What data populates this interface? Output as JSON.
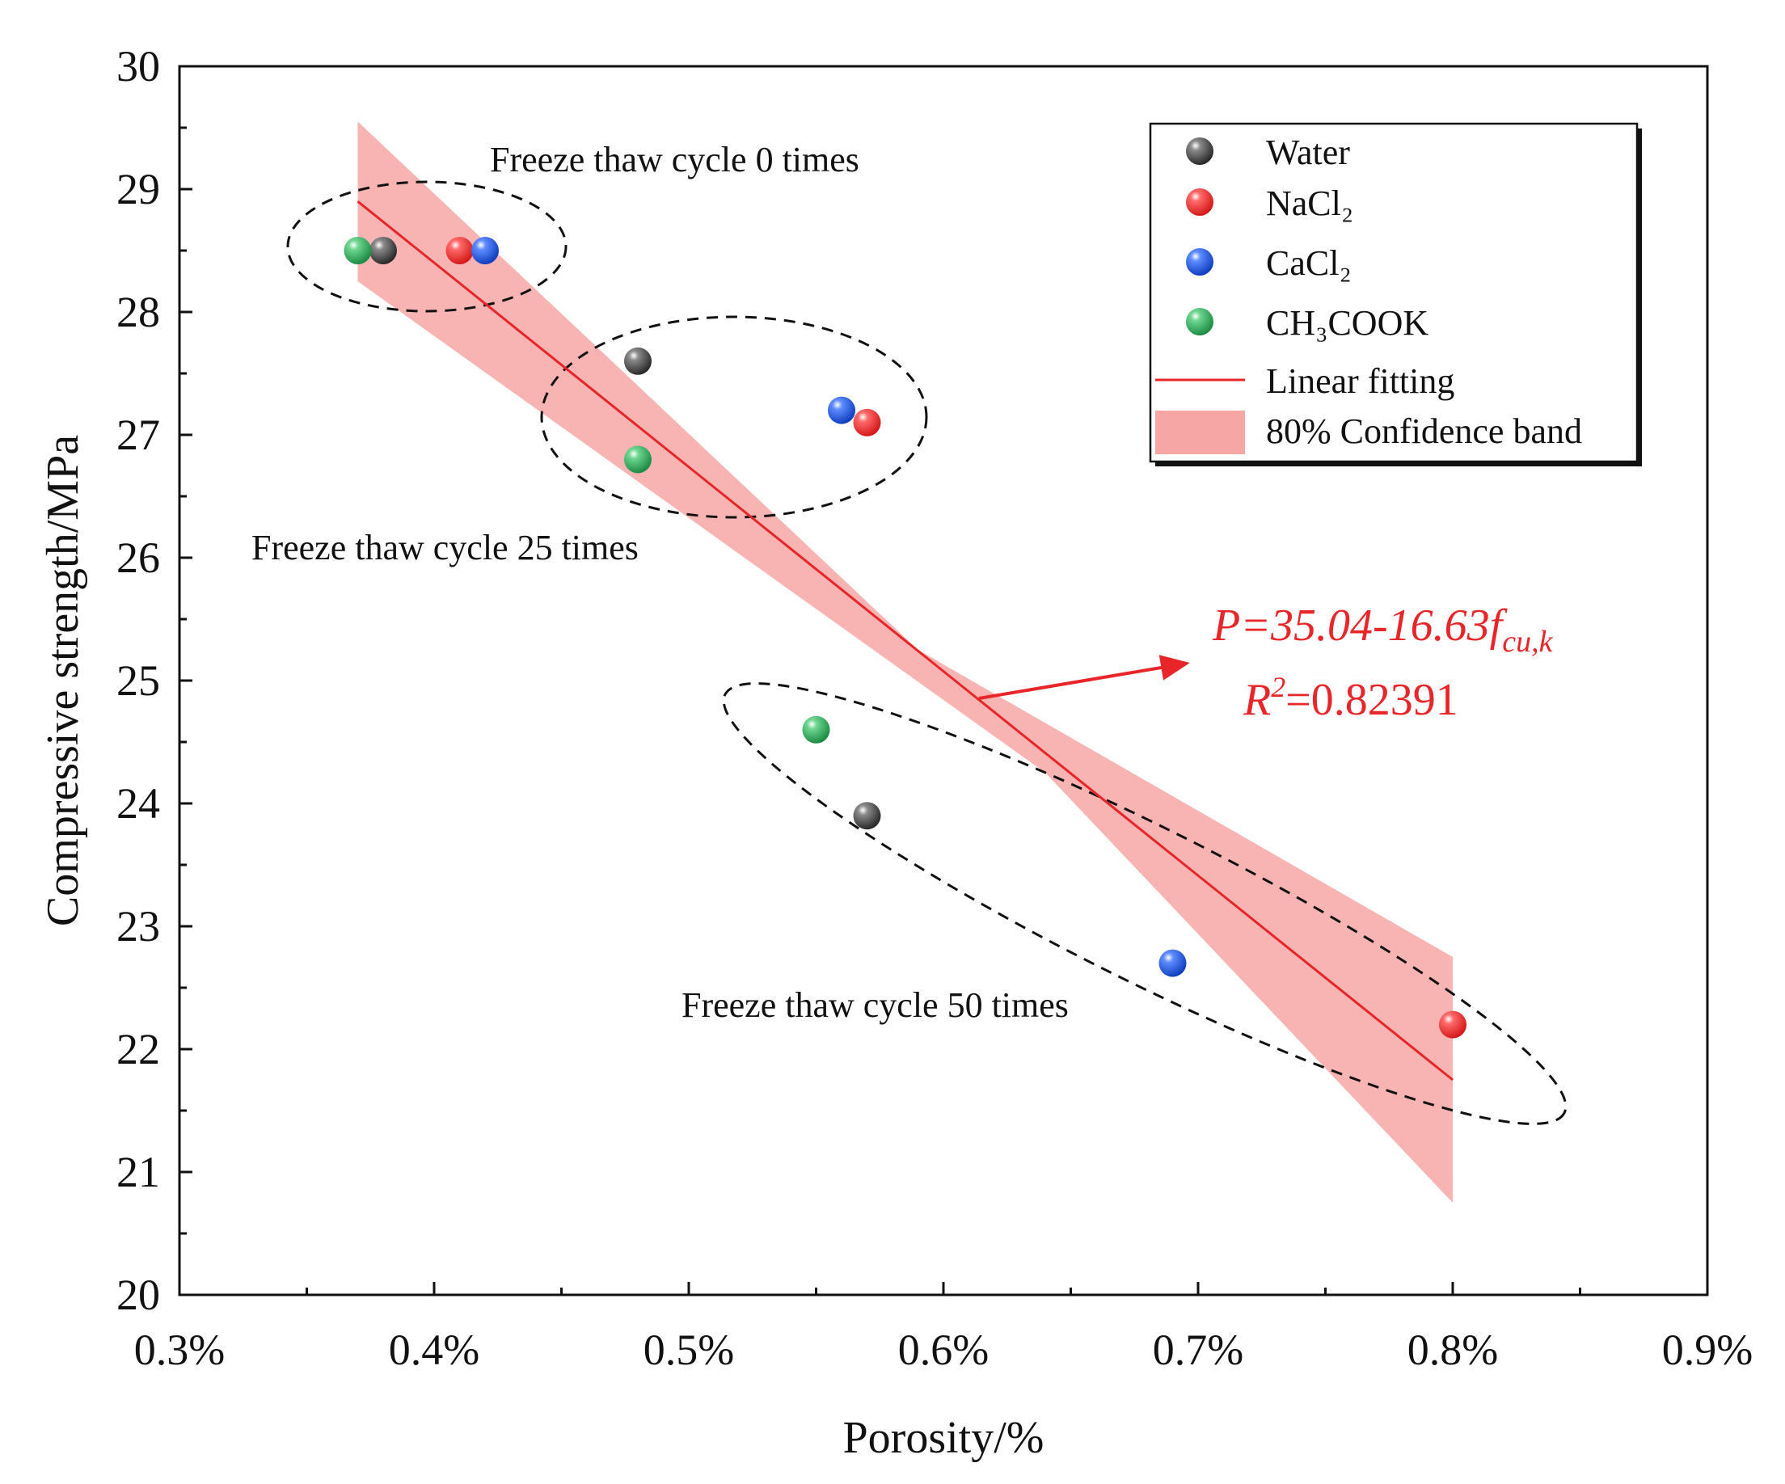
{
  "chart_data": {
    "type": "scatter",
    "xlabel": "Porosity/%",
    "ylabel": "Compressive strength/MPa",
    "xlim": [
      0.3,
      0.9
    ],
    "ylim": [
      20,
      30
    ],
    "x_ticks": [
      0.3,
      0.4,
      0.5,
      0.6,
      0.7,
      0.8,
      0.9
    ],
    "x_tick_labels": [
      "0.3%",
      "0.4%",
      "0.5%",
      "0.6%",
      "0.7%",
      "0.8%",
      "0.9%"
    ],
    "x_minor_ticks": [
      0.35,
      0.45,
      0.55,
      0.65,
      0.75,
      0.85
    ],
    "y_ticks": [
      20,
      21,
      22,
      23,
      24,
      25,
      26,
      27,
      28,
      29,
      30
    ],
    "y_tick_labels": [
      "20",
      "21",
      "22",
      "23",
      "24",
      "25",
      "26",
      "27",
      "28",
      "29",
      "30"
    ],
    "y_minor_ticks": [
      20.5,
      21.5,
      22.5,
      23.5,
      24.5,
      25.5,
      26.5,
      27.5,
      28.5,
      29.5
    ],
    "series": [
      {
        "name": "Water",
        "color": "#3a3a3a",
        "points": [
          {
            "x": 0.38,
            "y": 28.5
          },
          {
            "x": 0.48,
            "y": 27.6
          },
          {
            "x": 0.57,
            "y": 23.9
          }
        ]
      },
      {
        "name": "NaCl₂",
        "color": "#e8262a",
        "points": [
          {
            "x": 0.41,
            "y": 28.5
          },
          {
            "x": 0.57,
            "y": 27.1
          },
          {
            "x": 0.8,
            "y": 22.2
          }
        ]
      },
      {
        "name": "CaCl₂",
        "color": "#1f57d6",
        "points": [
          {
            "x": 0.42,
            "y": 28.5
          },
          {
            "x": 0.56,
            "y": 27.2
          },
          {
            "x": 0.69,
            "y": 22.7
          }
        ]
      },
      {
        "name": "CH₃COOK",
        "color": "#2aa65a",
        "points": [
          {
            "x": 0.37,
            "y": 28.5
          },
          {
            "x": 0.48,
            "y": 26.8
          },
          {
            "x": 0.55,
            "y": 24.6
          }
        ]
      }
    ],
    "fit": {
      "name": "Linear fitting",
      "color": "#e8262a",
      "x_range": [
        0.37,
        0.8
      ],
      "y_range": [
        28.9,
        21.75
      ]
    },
    "confidence_band": {
      "name": "80% Confidence band",
      "color": "#f6a9a9",
      "upper": [
        {
          "x": 0.37,
          "y": 29.55
        },
        {
          "x": 0.59,
          "y": 25.25
        },
        {
          "x": 0.8,
          "y": 22.75
        }
      ],
      "lower": [
        {
          "x": 0.37,
          "y": 28.25
        },
        {
          "x": 0.64,
          "y": 24.25
        },
        {
          "x": 0.8,
          "y": 20.75
        }
      ]
    },
    "equation": {
      "line1": "P=35.04-16.63f",
      "line1_subscript": "cu,k",
      "line2_prefix": "R",
      "line2_superscript": "2",
      "line2_value": "=0.82391"
    },
    "annotations": [
      {
        "text": "Freeze thaw cycle 0 times"
      },
      {
        "text": "Freeze thaw cycle 25 times"
      },
      {
        "text": "Freeze thaw cycle 50 times"
      }
    ],
    "legend_placement": "top-right"
  }
}
